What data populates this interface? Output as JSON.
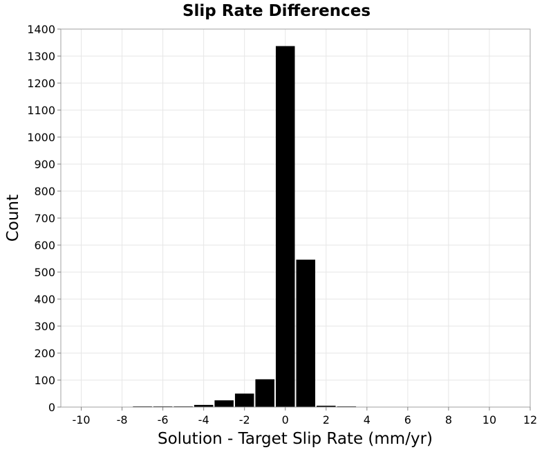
{
  "chart_data": {
    "type": "bar",
    "title": "Slip Rate Differences",
    "xlabel": "Solution - Target Slip Rate (mm/yr)",
    "ylabel": "Count",
    "xlim": [
      -11,
      12
    ],
    "ylim": [
      0,
      1400
    ],
    "xticks": [
      -10,
      -8,
      -6,
      -4,
      -2,
      0,
      2,
      4,
      6,
      8,
      10,
      12
    ],
    "yticks": [
      0,
      100,
      200,
      300,
      400,
      500,
      600,
      700,
      800,
      900,
      1000,
      1100,
      1200,
      1300,
      1400
    ],
    "xtick_labels": [
      "-10",
      "-8",
      "-6",
      "-4",
      "-2",
      "0",
      "2",
      "4",
      "6",
      "8",
      "10",
      "12"
    ],
    "ytick_labels": [
      "0",
      "100",
      "200",
      "300",
      "400",
      "500",
      "600",
      "700",
      "800",
      "900",
      "1000",
      "1100",
      "1200",
      "1300",
      "1400"
    ],
    "bin_width": 1,
    "bins": [
      {
        "x": -7,
        "count": 1
      },
      {
        "x": -6,
        "count": 2
      },
      {
        "x": -5,
        "count": 2
      },
      {
        "x": -4,
        "count": 8
      },
      {
        "x": -3,
        "count": 25
      },
      {
        "x": -2,
        "count": 50
      },
      {
        "x": -1,
        "count": 103
      },
      {
        "x": 0,
        "count": 1337
      },
      {
        "x": 1,
        "count": 546
      },
      {
        "x": 2,
        "count": 5
      },
      {
        "x": 3,
        "count": 1
      }
    ],
    "bar_color": "#000000",
    "grid": true
  }
}
